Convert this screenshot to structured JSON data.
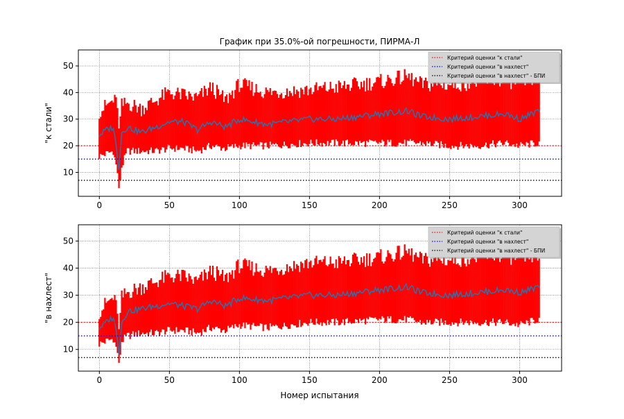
{
  "title": "График при 35.0%-ой погрешности, ПИРМА-Л",
  "xlabel": "Номер испытания",
  "legend": [
    {
      "label": "Критерий оценки \"к стали\"",
      "color": "#ff0000"
    },
    {
      "label": "Критерий оценки \"в нахлест\"",
      "color": "#0000ff"
    },
    {
      "label": "Критерий оценки \"в нахлест\" - БПИ",
      "color": "#000000"
    }
  ],
  "chart_data": [
    {
      "type": "line",
      "ylabel": "\"к стали\"",
      "xlim": [
        -15,
        330
      ],
      "ylim": [
        1,
        56
      ],
      "xticks": [
        0,
        50,
        100,
        150,
        200,
        250,
        300
      ],
      "yticks": [
        10,
        20,
        30,
        40,
        50
      ],
      "grid": true,
      "legend_position": "top-right",
      "n_points": 315,
      "series": [
        {
          "role": "mean",
          "color": "#1f77b4",
          "x": [
            0,
            5,
            10,
            13,
            14,
            16,
            20,
            30,
            40,
            50,
            60,
            70,
            80,
            90,
            100,
            120,
            150,
            170,
            200,
            220,
            230,
            250,
            270,
            290,
            300,
            313
          ],
          "y": [
            24,
            26,
            27,
            16,
            12,
            25,
            27,
            25,
            27,
            29,
            29,
            26,
            29,
            27,
            30,
            28,
            30,
            30,
            32,
            33,
            31,
            30,
            31,
            32,
            30,
            33
          ]
        },
        {
          "role": "error_band",
          "color": "#ff0000",
          "x": [
            0,
            5,
            10,
            13,
            14,
            16,
            20,
            30,
            40,
            50,
            60,
            70,
            80,
            90,
            100,
            120,
            150,
            170,
            200,
            220,
            230,
            250,
            270,
            290,
            300,
            313
          ],
          "low": [
            16,
            17,
            18,
            10,
            3,
            12,
            18,
            18,
            18,
            19,
            19,
            18,
            20,
            19,
            20,
            20,
            21,
            21,
            21,
            21,
            21,
            20,
            20,
            21,
            20,
            21
          ],
          "high": [
            33,
            35,
            37,
            36,
            25,
            35,
            36,
            34,
            37,
            40,
            39,
            38,
            42,
            37,
            43,
            40,
            41,
            42,
            44,
            46,
            43,
            43,
            44,
            45,
            43,
            46
          ]
        }
      ],
      "hlines": [
        {
          "y": 20,
          "color": "#ff0000"
        },
        {
          "y": 15,
          "color": "#0000ff"
        },
        {
          "y": 7,
          "color": "#000000"
        }
      ]
    },
    {
      "type": "line",
      "ylabel": "\"в нахлест\"",
      "xlim": [
        -15,
        330
      ],
      "ylim": [
        2,
        56
      ],
      "xticks": [
        0,
        50,
        100,
        150,
        200,
        250,
        300
      ],
      "yticks": [
        10,
        20,
        30,
        40,
        50
      ],
      "grid": true,
      "legend_position": "top-right",
      "n_points": 315,
      "series": [
        {
          "role": "mean",
          "color": "#1f77b4",
          "x": [
            0,
            5,
            10,
            13,
            14,
            16,
            20,
            30,
            40,
            50,
            60,
            70,
            80,
            90,
            100,
            120,
            150,
            170,
            200,
            220,
            230,
            250,
            270,
            290,
            300,
            313
          ],
          "y": [
            18,
            20,
            22,
            14,
            9,
            20,
            24,
            25,
            26,
            27,
            26,
            25,
            28,
            26,
            29,
            28,
            30,
            30,
            32,
            33,
            31,
            30,
            31,
            32,
            31,
            33
          ]
        },
        {
          "role": "error_band",
          "color": "#ff0000",
          "x": [
            0,
            5,
            10,
            13,
            14,
            16,
            20,
            30,
            40,
            50,
            60,
            70,
            80,
            90,
            100,
            120,
            150,
            170,
            200,
            220,
            230,
            250,
            270,
            290,
            300,
            313
          ],
          "low": [
            12,
            13,
            14,
            9,
            4,
            13,
            15,
            16,
            16,
            17,
            17,
            16,
            18,
            17,
            19,
            18,
            20,
            20,
            21,
            21,
            20,
            20,
            20,
            20,
            19,
            21
          ],
          "high": [
            24,
            27,
            29,
            25,
            16,
            29,
            31,
            33,
            35,
            37,
            37,
            35,
            39,
            36,
            41,
            39,
            42,
            42,
            44,
            46,
            43,
            43,
            44,
            45,
            43,
            45
          ]
        }
      ],
      "hlines": [
        {
          "y": 20,
          "color": "#ff0000"
        },
        {
          "y": 15,
          "color": "#0000ff"
        },
        {
          "y": 7,
          "color": "#000000"
        }
      ]
    }
  ]
}
